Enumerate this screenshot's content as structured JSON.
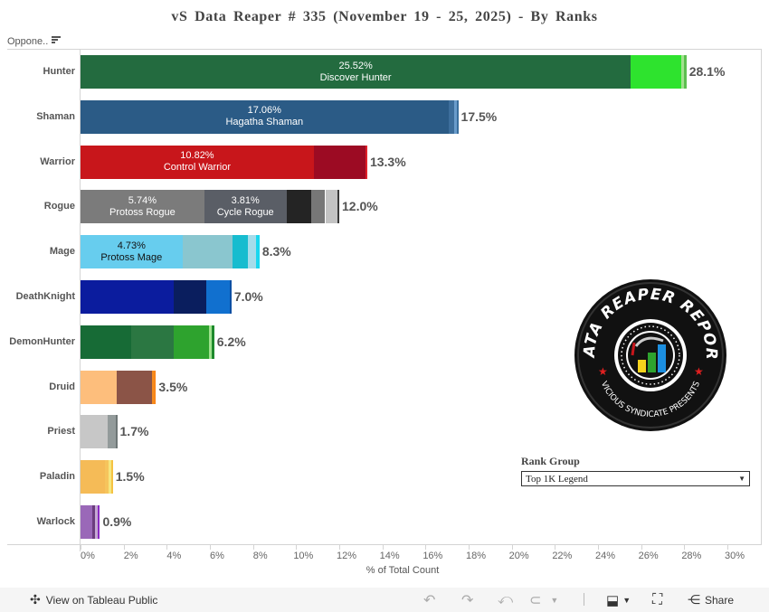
{
  "title": "vS Data Reaper # 335 (November 19 - 25, 2025) - By Ranks",
  "header": {
    "column_label": "Oppone..",
    "sort_icon": "sort-descending-icon"
  },
  "chart_data": {
    "type": "bar",
    "orientation": "horizontal",
    "stacked": true,
    "title": "vS Data Reaper # 335 (November 19 - 25, 2025) - By Ranks",
    "xlabel": "% of Total Count",
    "ylabel": "Opponent Class",
    "xlim": [
      0,
      30
    ],
    "x_ticks": [
      "0%",
      "2%",
      "4%",
      "6%",
      "8%",
      "10%",
      "12%",
      "14%",
      "16%",
      "18%",
      "20%",
      "22%",
      "24%",
      "26%",
      "28%",
      "30%"
    ],
    "categories": [
      "Hunter",
      "Shaman",
      "Warrior",
      "Rogue",
      "Mage",
      "DeathKnight",
      "DemonHunter",
      "Druid",
      "Priest",
      "Paladin",
      "Warlock"
    ],
    "totals": [
      "28.1%",
      "17.5%",
      "13.3%",
      "12.0%",
      "8.3%",
      "7.0%",
      "6.2%",
      "3.5%",
      "1.7%",
      "1.5%",
      "0.9%"
    ],
    "total_values": [
      28.1,
      17.5,
      13.3,
      12.0,
      8.3,
      7.0,
      6.2,
      3.5,
      1.7,
      1.5,
      0.9
    ],
    "rows": [
      {
        "class": "Hunter",
        "total": "28.1%",
        "segments": [
          {
            "value": 25.52,
            "color": "#236b3f",
            "pct": "25.52%",
            "label": "Discover Hunter",
            "text_color": "#ffffff"
          },
          {
            "value": 2.36,
            "color": "#2ee32e"
          },
          {
            "value": 0.12,
            "color": "#a3e08f"
          },
          {
            "value": 0.1,
            "color": "#5cbf4f"
          }
        ]
      },
      {
        "class": "Shaman",
        "total": "17.5%",
        "segments": [
          {
            "value": 17.06,
            "color": "#2b5b86",
            "pct": "17.06%",
            "label": "Hagatha Shaman",
            "text_color": "#ffffff"
          },
          {
            "value": 0.25,
            "color": "#3d6e9c"
          },
          {
            "value": 0.13,
            "color": "#6a9ccb"
          },
          {
            "value": 0.08,
            "color": "#3a6f9e"
          }
        ]
      },
      {
        "class": "Warrior",
        "total": "13.3%",
        "segments": [
          {
            "value": 10.82,
            "color": "#c8161b",
            "pct": "10.82%",
            "label": "Control Warrior",
            "text_color": "#ffffff"
          },
          {
            "value": 2.4,
            "color": "#9c0b23"
          },
          {
            "value": 0.08,
            "color": "#e0202a"
          }
        ]
      },
      {
        "class": "Rogue",
        "total": "12.0%",
        "segments": [
          {
            "value": 5.74,
            "color": "#7b7b7b",
            "pct": "5.74%",
            "label": "Protoss Rogue",
            "text_color": "#ffffff"
          },
          {
            "value": 3.81,
            "color": "#5a5e66",
            "pct": "3.81%",
            "label": "Cycle Rogue",
            "text_color": "#ffffff"
          },
          {
            "value": 1.13,
            "color": "#242424"
          },
          {
            "value": 0.67,
            "color": "#777777"
          },
          {
            "value": 0.55,
            "color": "#c3c3c3"
          },
          {
            "value": 0.1,
            "color": "#3a3a3a"
          }
        ]
      },
      {
        "class": "Mage",
        "total": "8.3%",
        "segments": [
          {
            "value": 4.73,
            "color": "#67cdee",
            "pct": "4.73%",
            "label": "Protoss Mage",
            "text_color": "#111111"
          },
          {
            "value": 2.3,
            "color": "#8ac6cf"
          },
          {
            "value": 0.75,
            "color": "#17bccf"
          },
          {
            "value": 0.35,
            "color": "#a5dcea"
          },
          {
            "value": 0.17,
            "color": "#1ad7ef"
          }
        ]
      },
      {
        "class": "DeathKnight",
        "total": "7.0%",
        "segments": [
          {
            "value": 4.33,
            "color": "#0b1c9e"
          },
          {
            "value": 1.5,
            "color": "#0a1e5e"
          },
          {
            "value": 1.1,
            "color": "#1170cf"
          },
          {
            "value": 0.07,
            "color": "#0c4fa3"
          }
        ]
      },
      {
        "class": "DemonHunter",
        "total": "6.2%",
        "segments": [
          {
            "value": 2.35,
            "color": "#176b36"
          },
          {
            "value": 1.97,
            "color": "#2b7742"
          },
          {
            "value": 1.64,
            "color": "#2ea32e"
          },
          {
            "value": 0.13,
            "color": "#9fe28e"
          },
          {
            "value": 0.11,
            "color": "#1d8a2c"
          }
        ]
      },
      {
        "class": "Druid",
        "total": "3.5%",
        "segments": [
          {
            "value": 1.68,
            "color": "#fdbe7c"
          },
          {
            "value": 1.64,
            "color": "#8b5447"
          },
          {
            "value": 0.12,
            "color": "#f58b1e"
          },
          {
            "value": 0.06,
            "color": "#ff7e0a"
          }
        ]
      },
      {
        "class": "Priest",
        "total": "1.7%",
        "segments": [
          {
            "value": 1.26,
            "color": "#c7c7c7"
          },
          {
            "value": 0.38,
            "color": "#939b9b"
          },
          {
            "value": 0.06,
            "color": "#6e7676"
          }
        ]
      },
      {
        "class": "Paladin",
        "total": "1.5%",
        "segments": [
          {
            "value": 1.13,
            "color": "#f5bb57"
          },
          {
            "value": 0.17,
            "color": "#f6c45c"
          },
          {
            "value": 0.12,
            "color": "#f5e67f"
          },
          {
            "value": 0.08,
            "color": "#f5c242"
          }
        ]
      },
      {
        "class": "Warlock",
        "total": "0.9%",
        "segments": [
          {
            "value": 0.55,
            "color": "#9a68b8"
          },
          {
            "value": 0.13,
            "color": "#6b3d7e"
          },
          {
            "value": 0.13,
            "color": "#c6a8d4"
          },
          {
            "value": 0.09,
            "color": "#8a2ac4"
          }
        ]
      }
    ],
    "grid": false,
    "legend": "none"
  },
  "filter": {
    "title": "Rank Group",
    "selected": "Top 1K Legend"
  },
  "logo": {
    "top_text": "DATA REAPER REPORT",
    "bottom_text": "VICIOUS SYNDICATE PRESENTS"
  },
  "toolbar": {
    "view_label": "View on Tableau Public",
    "share_label": "Share"
  }
}
